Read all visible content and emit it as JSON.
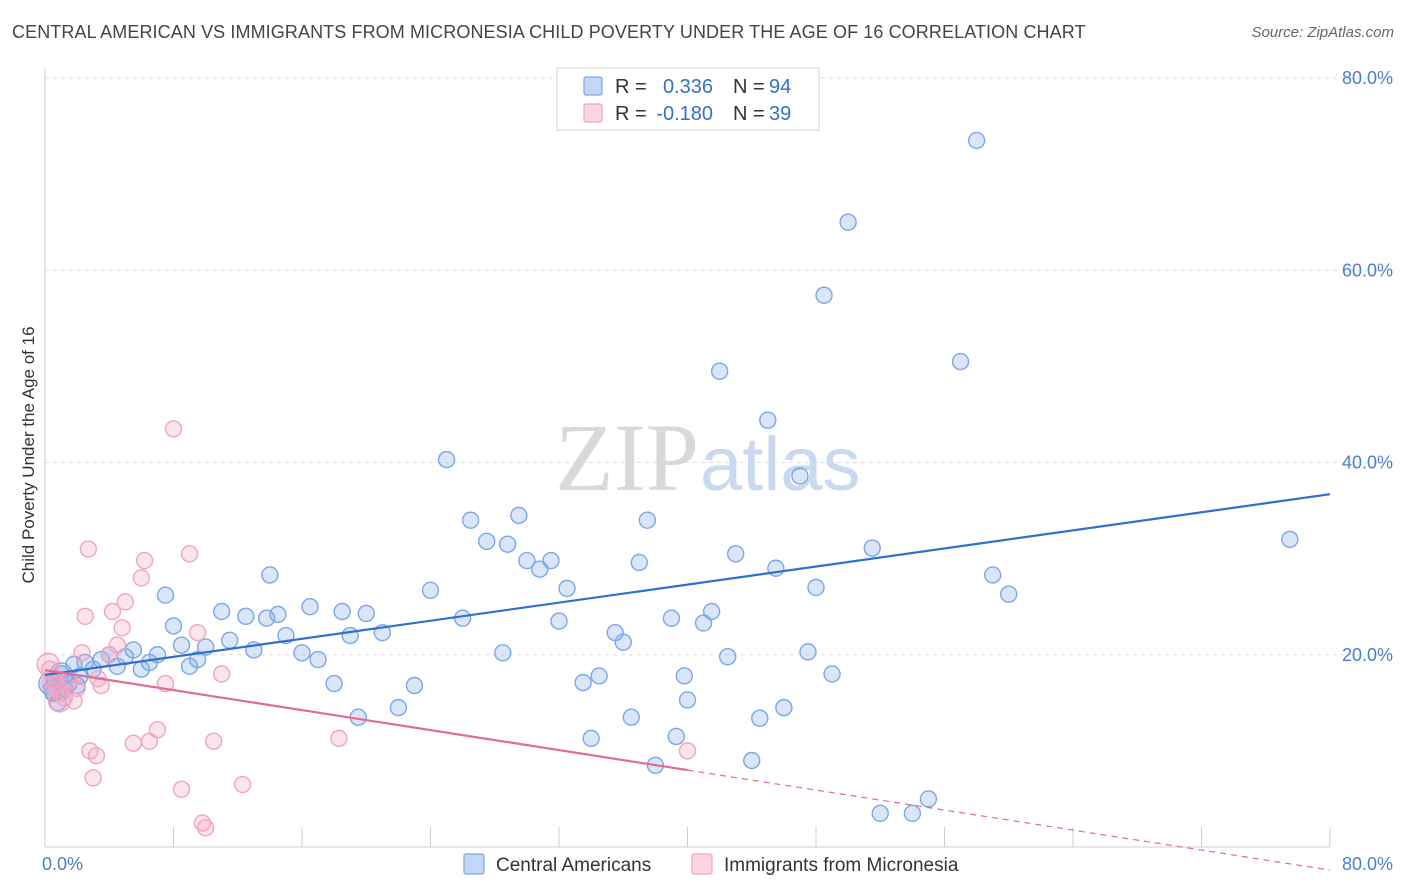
{
  "title": "CENTRAL AMERICAN VS IMMIGRANTS FROM MICRONESIA CHILD POVERTY UNDER THE AGE OF 16 CORRELATION CHART",
  "source": "Source: ZipAtlas.com",
  "watermark": {
    "zip": "ZIP",
    "atlas": "atlas"
  },
  "chart_data": {
    "type": "scatter",
    "ylabel": "Child Poverty Under the Age of 16",
    "xlim": [
      0,
      80
    ],
    "ylim": [
      0,
      80
    ],
    "x_tick_labels": [
      "0.0%",
      "80.0%"
    ],
    "y_ticks": [
      20,
      40,
      60,
      80
    ],
    "y_tick_labels": [
      "20.0%",
      "40.0%",
      "60.0%",
      "80.0%"
    ],
    "grid": true,
    "legend": {
      "placement": "top-center",
      "entries": [
        {
          "r_label": "R =",
          "r_value": "0.336",
          "n_label": "N =",
          "n_value": "94"
        },
        {
          "r_label": "R =",
          "r_value": "-0.180",
          "n_label": "N =",
          "n_value": "39"
        }
      ]
    },
    "series": [
      {
        "name": "Central Americans",
        "color": "#7aa7e6",
        "line_color": "#2f6fce",
        "trend": {
          "x0": 0,
          "y0": 17.9,
          "x1": 80,
          "y1": 36.7,
          "solid_until": 80
        },
        "points": [
          [
            0.5,
            16
          ],
          [
            0.6,
            17.5
          ],
          [
            0.8,
            15
          ],
          [
            1,
            18
          ],
          [
            1.2,
            16.5
          ],
          [
            1.5,
            17
          ],
          [
            1.8,
            19
          ],
          [
            2,
            16.8
          ],
          [
            2.2,
            17.8
          ],
          [
            2.5,
            19.2
          ],
          [
            3,
            18.5
          ],
          [
            3.5,
            19.5
          ],
          [
            4,
            20
          ],
          [
            4.5,
            18.8
          ],
          [
            5,
            19.8
          ],
          [
            5.5,
            20.5
          ],
          [
            6,
            18.5
          ],
          [
            6.5,
            19.2
          ],
          [
            7,
            20
          ],
          [
            7.5,
            26.2
          ],
          [
            8,
            23
          ],
          [
            8.5,
            21
          ],
          [
            9,
            18.8
          ],
          [
            9.5,
            19.5
          ],
          [
            10,
            20.8
          ],
          [
            11,
            24.5
          ],
          [
            11.5,
            21.5
          ],
          [
            12.5,
            24
          ],
          [
            13,
            20.5
          ],
          [
            13.8,
            23.8
          ],
          [
            14,
            28.3
          ],
          [
            14.5,
            24.2
          ],
          [
            15,
            22
          ],
          [
            16,
            20.2
          ],
          [
            16.5,
            25
          ],
          [
            17,
            19.5
          ],
          [
            18,
            17
          ],
          [
            18.5,
            24.5
          ],
          [
            19,
            22
          ],
          [
            19.5,
            13.5
          ],
          [
            20,
            24.3
          ],
          [
            21,
            22.3
          ],
          [
            22,
            14.5
          ],
          [
            23,
            16.8
          ],
          [
            24,
            26.7
          ],
          [
            25,
            40.3
          ],
          [
            26,
            23.8
          ],
          [
            26.5,
            34
          ],
          [
            27.5,
            31.8
          ],
          [
            28.5,
            20.2
          ],
          [
            28.8,
            31.5
          ],
          [
            29.5,
            34.5
          ],
          [
            30,
            29.8
          ],
          [
            30.8,
            28.9
          ],
          [
            31.5,
            29.8
          ],
          [
            32,
            23.5
          ],
          [
            32.5,
            26.9
          ],
          [
            33.5,
            17.1
          ],
          [
            34,
            11.3
          ],
          [
            34.5,
            17.8
          ],
          [
            35.5,
            22.3
          ],
          [
            36,
            21.3
          ],
          [
            36.5,
            13.5
          ],
          [
            37,
            29.6
          ],
          [
            37.5,
            34
          ],
          [
            38,
            8.5
          ],
          [
            39,
            23.8
          ],
          [
            39.3,
            11.5
          ],
          [
            39.8,
            17.8
          ],
          [
            40,
            15.3
          ],
          [
            41,
            23.3
          ],
          [
            41.5,
            24.5
          ],
          [
            42,
            49.5
          ],
          [
            42.5,
            19.8
          ],
          [
            43,
            30.5
          ],
          [
            44,
            9
          ],
          [
            44.5,
            13.4
          ],
          [
            45,
            44.4
          ],
          [
            45.5,
            29
          ],
          [
            46,
            14.5
          ],
          [
            47,
            38.6
          ],
          [
            47.5,
            20.3
          ],
          [
            48,
            27
          ],
          [
            48.5,
            57.4
          ],
          [
            49,
            18
          ],
          [
            50,
            65
          ],
          [
            51.5,
            31.1
          ],
          [
            52,
            3.5
          ],
          [
            54,
            3.5
          ],
          [
            55,
            5
          ],
          [
            57,
            50.5
          ],
          [
            58,
            73.5
          ],
          [
            59,
            28.3
          ],
          [
            60,
            26.3
          ],
          [
            77.5,
            32
          ]
        ],
        "large_points": [
          [
            0.3,
            17
          ],
          [
            0.6,
            16.4
          ],
          [
            1.0,
            18
          ]
        ]
      },
      {
        "name": "Immigrants from Micronesia",
        "color": "#f2a3bf",
        "line_color": "#e06b96",
        "trend": {
          "x0": 0,
          "y0": 18.4,
          "x1": 80,
          "y1": -2.4,
          "solid_until": 40
        },
        "points": [
          [
            0.3,
            18.5
          ],
          [
            0.5,
            17.5
          ],
          [
            0.7,
            16.8
          ],
          [
            1,
            16
          ],
          [
            1.2,
            15.5
          ],
          [
            1.5,
            17.2
          ],
          [
            1.8,
            15.2
          ],
          [
            2,
            16.5
          ],
          [
            2.3,
            20.2
          ],
          [
            2.5,
            24
          ],
          [
            2.7,
            31
          ],
          [
            2.8,
            10
          ],
          [
            3,
            7.2
          ],
          [
            3.2,
            9.5
          ],
          [
            3.3,
            17.5
          ],
          [
            3.5,
            16.8
          ],
          [
            4,
            20
          ],
          [
            4.2,
            24.5
          ],
          [
            4.5,
            21
          ],
          [
            4.8,
            22.8
          ],
          [
            5,
            25.5
          ],
          [
            5.5,
            10.8
          ],
          [
            6,
            28
          ],
          [
            6.2,
            29.8
          ],
          [
            6.5,
            11
          ],
          [
            7,
            12.2
          ],
          [
            7.5,
            17
          ],
          [
            8,
            43.5
          ],
          [
            8.5,
            6
          ],
          [
            9,
            30.5
          ],
          [
            9.5,
            22.3
          ],
          [
            9.8,
            2.5
          ],
          [
            10,
            2
          ],
          [
            10.5,
            11
          ],
          [
            11,
            18
          ],
          [
            12.3,
            6.5
          ],
          [
            18.3,
            11.3
          ],
          [
            40,
            10
          ]
        ],
        "large_points": [
          [
            0.2,
            19
          ],
          [
            0.5,
            17
          ],
          [
            0.9,
            15.2
          ]
        ]
      }
    ]
  }
}
